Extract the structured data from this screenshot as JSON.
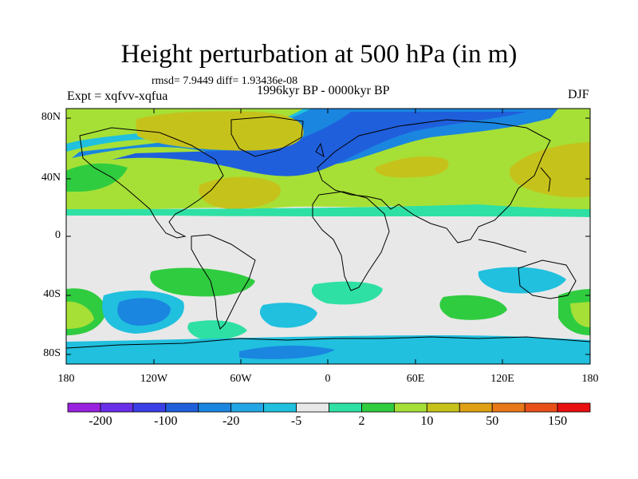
{
  "title": "Height perturbation at 500 hPa (in m)",
  "stats": "rmsd= 7.9449 diff= 1.93436e-08",
  "experiment": "Expt = xqfvv-xqfua",
  "period": "1996kyr BP - 0000kyr BP",
  "season": "DJF",
  "lat_labels": [
    "80N",
    "40N",
    "0",
    "40S",
    "80S"
  ],
  "lon_labels": [
    "180",
    "120W",
    "60W",
    "0",
    "60E",
    "120E",
    "180"
  ],
  "colorbar": {
    "colors": [
      "#9a21e0",
      "#6a2fe8",
      "#3a3fe8",
      "#1f5fdc",
      "#1a86e0",
      "#22a6e6",
      "#20c0de",
      "#e8e8e8",
      "#2ee0a4",
      "#30cc40",
      "#a6e036",
      "#c6c21c",
      "#e0a014",
      "#e87818",
      "#e85018",
      "#e81010"
    ],
    "labels": [
      "-200",
      "-100",
      "-20",
      "-5",
      "2",
      "10",
      "50",
      "150"
    ]
  }
}
